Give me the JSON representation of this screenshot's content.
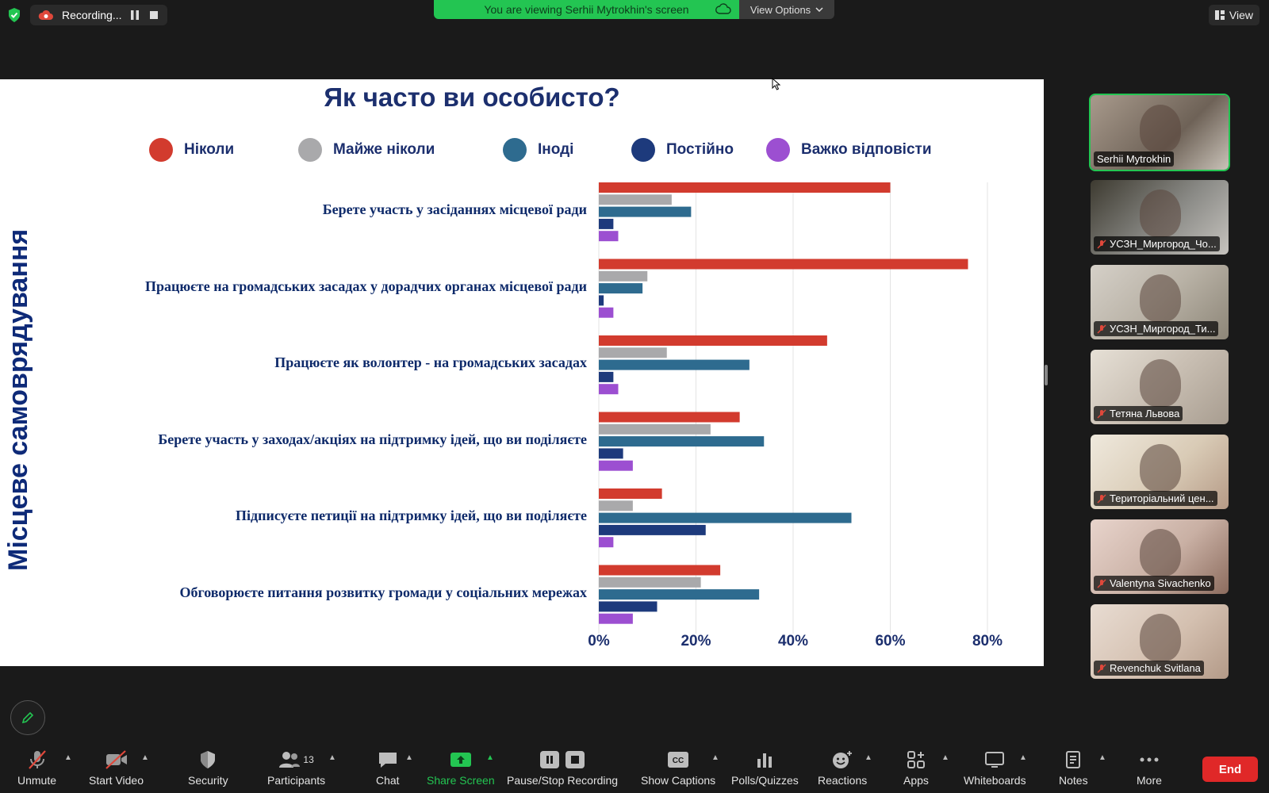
{
  "top": {
    "recording_label": "Recording...",
    "viewing_banner": "You are viewing Serhii Mytrokhin's screen",
    "view_options": "View Options",
    "view_label": "View"
  },
  "slide": {
    "title": "Як часто ви особисто?",
    "vertical_label": "Місцеве самоврядування"
  },
  "chart_data": {
    "type": "bar",
    "orientation": "horizontal",
    "title": "Як часто ви особисто?",
    "xlabel": "",
    "ylabel": "Місцеве самоврядування",
    "xlim": [
      0,
      80
    ],
    "x_ticks": [
      "0%",
      "20%",
      "40%",
      "60%",
      "80%"
    ],
    "grid": true,
    "legend_position": "top",
    "categories": [
      "Берете участь у засіданнях місцевої ради",
      "Працюєте на громадських засадах у дорадчих органах місцевої ради",
      "Працюєте як волонтер - на громадських засадах",
      "Берете участь у заходах/акціях на підтримку ідей, що ви поділяєте",
      "Підписуєте петиції на підтримку ідей, що ви поділяєте",
      "Обговорюєте питання розвитку громади у соціальних мережах"
    ],
    "series": [
      {
        "name": "Ніколи",
        "color": "#d23b2e",
        "values": [
          60,
          76,
          47,
          29,
          13,
          25
        ]
      },
      {
        "name": "Майже ніколи",
        "color": "#a9a9ab",
        "values": [
          15,
          10,
          14,
          23,
          7,
          21
        ]
      },
      {
        "name": "Іноді",
        "color": "#2e6b8f",
        "values": [
          19,
          9,
          31,
          34,
          52,
          33
        ]
      },
      {
        "name": "Постійно",
        "color": "#1d3a7c",
        "values": [
          3,
          1,
          3,
          5,
          22,
          12
        ]
      },
      {
        "name": "Важко відповісти",
        "color": "#9c4fd1",
        "values": [
          4,
          3,
          4,
          7,
          3,
          7
        ]
      }
    ]
  },
  "participants": [
    {
      "name": "Serhii Mytrokhin",
      "muted": false,
      "active": true
    },
    {
      "name": "УСЗН_Миргород_Чо...",
      "muted": true,
      "active": false
    },
    {
      "name": "УСЗН_Миргород_Ти...",
      "muted": true,
      "active": false
    },
    {
      "name": "Тетяна Львова",
      "muted": true,
      "active": false
    },
    {
      "name": "Територіальний цен...",
      "muted": true,
      "active": false
    },
    {
      "name": "Valentyna Sivachenko",
      "muted": true,
      "active": false
    },
    {
      "name": "Revenchuk Svitlana",
      "muted": true,
      "active": false
    }
  ],
  "toolbar": {
    "unmute": "Unmute",
    "start_video": "Start Video",
    "security": "Security",
    "participants": "Participants",
    "participants_count": "13",
    "chat": "Chat",
    "share_screen": "Share Screen",
    "pause_stop_recording": "Pause/Stop Recording",
    "show_captions": "Show Captions",
    "polls": "Polls/Quizzes",
    "reactions": "Reactions",
    "apps": "Apps",
    "whiteboards": "Whiteboards",
    "notes": "Notes",
    "more": "More",
    "end": "End"
  },
  "colors": {
    "accent_green": "#23c552",
    "end_red": "#e02828",
    "slide_title": "#1c2f6e"
  }
}
